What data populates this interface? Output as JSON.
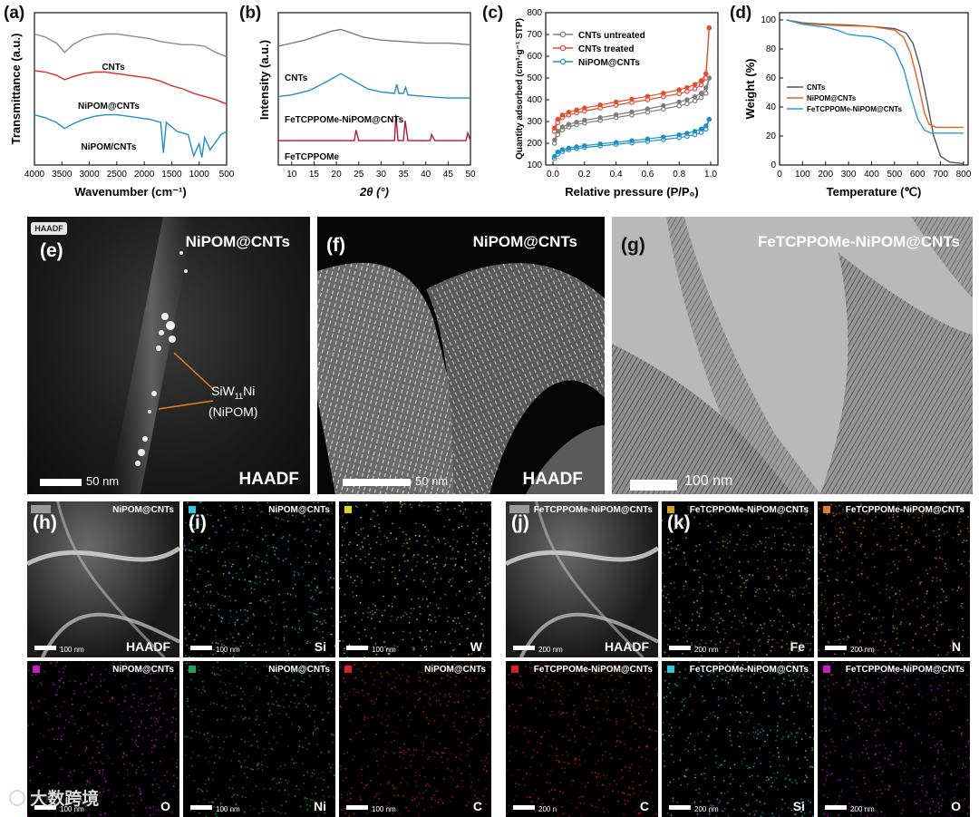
{
  "panels": {
    "a": {
      "letter": "(a)"
    },
    "b": {
      "letter": "(b)"
    },
    "c": {
      "letter": "(c)"
    },
    "d": {
      "letter": "(d)"
    },
    "e": {
      "letter": "(e)",
      "title": "NiPOM@CNTs",
      "tag": "HAADF",
      "annotation_line1": "SiW",
      "annotation_sub": "11",
      "annotation_line1b": "Ni",
      "annotation_line2": "(NiPOM)",
      "scale": "50 nm",
      "corner": "HAADF"
    },
    "f": {
      "letter": "(f)",
      "title": "NiPOM@CNTs",
      "scale": "50 nm",
      "corner": "HAADF"
    },
    "g": {
      "letter": "(g)",
      "title": "FeTCPPOMe-NiPOM@CNTs",
      "scale": "100 nm"
    }
  },
  "mapping_left": {
    "h_letter": "(h)",
    "i_letter": "(i)",
    "tiles": [
      {
        "title": "NiPOM@CNTs",
        "element": "HAADF",
        "scale": "100 nm",
        "color": "#ffffff"
      },
      {
        "title": "NiPOM@CNTs",
        "element": "Si",
        "scale": "100 nm",
        "color": "#2ec8d8"
      },
      {
        "title": "",
        "element": "W",
        "scale": "100 nm",
        "color": "#d8d81a"
      },
      {
        "title": "NiPOM@CNTs",
        "element": "O",
        "scale": "100 nm",
        "color": "#c21ec2"
      },
      {
        "title": "NiPOM@CNTs",
        "element": "Ni",
        "scale": "100 nm",
        "color": "#1fa35a"
      },
      {
        "title": "NiPOM@CNTs",
        "element": "C",
        "scale": "100 nm",
        "color": "#e0201a"
      }
    ]
  },
  "mapping_right": {
    "j_letter": "(j)",
    "k_letter": "(k)",
    "tiles": [
      {
        "title": "FeTCPPOMe-NiPOM@CNTs",
        "element": "HAADF",
        "scale": "200 nm",
        "color": "#ffffff"
      },
      {
        "title": "FeTCPPOMe-NiPOM@CNTs",
        "element": "Fe",
        "scale": "200 nm",
        "color": "#c8a21a"
      },
      {
        "title": "FeTCPPOMe-NiPOM@CNTs",
        "element": "N",
        "scale": "200 nm",
        "color": "#e0801a"
      },
      {
        "title": "FeTCPPOMe-NiPOM@CNTs",
        "element": "C",
        "scale": "200 n",
        "color": "#e0201a"
      },
      {
        "title": "FeTCPPOMe-NiPOM@CNTs",
        "element": "Si",
        "scale": "200 nm",
        "color": "#2ec8d8"
      },
      {
        "title": "FeTCPPOMe-NiPOM@CNTs",
        "element": "O",
        "scale": "200 nm",
        "color": "#c21ec2"
      }
    ]
  },
  "watermark": "大数跨境",
  "chart_data": [
    {
      "id": "a",
      "type": "line",
      "title": "",
      "xlabel": "Wavenumber (cm⁻¹)",
      "ylabel": "Transmittance (a.u.)",
      "xlim": [
        4000,
        500
      ],
      "xticks": [
        "4000",
        "3500",
        "3000",
        "2500",
        "2000",
        "1500",
        "1000",
        "500"
      ],
      "series": [
        {
          "name": "CNTs",
          "color": "#8c8c8c",
          "x": [
            4000,
            3800,
            3600,
            3450,
            3300,
            3100,
            2900,
            2700,
            2500,
            2300,
            2100,
            1900,
            1700,
            1500,
            1300,
            1100,
            900,
            700,
            500
          ],
          "y": [
            0.86,
            0.84,
            0.8,
            0.74,
            0.79,
            0.83,
            0.85,
            0.86,
            0.86,
            0.85,
            0.84,
            0.83,
            0.81,
            0.8,
            0.79,
            0.79,
            0.78,
            0.74,
            0.71
          ]
        },
        {
          "name": "NiPOM@CNTs",
          "color": "#e02a20",
          "x": [
            4000,
            3800,
            3600,
            3450,
            3300,
            3100,
            2900,
            2700,
            2500,
            2300,
            2100,
            1900,
            1700,
            1500,
            1300,
            1100,
            900,
            700,
            500
          ],
          "y": [
            0.62,
            0.61,
            0.59,
            0.56,
            0.58,
            0.6,
            0.61,
            0.61,
            0.6,
            0.59,
            0.58,
            0.57,
            0.55,
            0.52,
            0.5,
            0.47,
            0.45,
            0.43,
            0.4
          ]
        },
        {
          "name": "NiPOM/CNTs",
          "color": "#1f8fc8",
          "x": [
            4000,
            3800,
            3600,
            3450,
            3300,
            3100,
            2900,
            2700,
            2500,
            2300,
            2100,
            1900,
            1700,
            1650,
            1600,
            1400,
            1200,
            1100,
            1000,
            950,
            900,
            800,
            700,
            600,
            500
          ],
          "y": [
            0.33,
            0.31,
            0.28,
            0.24,
            0.27,
            0.3,
            0.32,
            0.33,
            0.33,
            0.32,
            0.31,
            0.3,
            0.28,
            0.08,
            0.28,
            0.22,
            0.2,
            0.06,
            0.14,
            0.05,
            0.18,
            0.1,
            0.15,
            0.2,
            0.22
          ]
        }
      ],
      "labels": [
        "CNTs",
        "NiPOM@CNTs",
        "NiPOM/CNTs"
      ]
    },
    {
      "id": "b",
      "type": "line",
      "xlabel": "2θ (°)",
      "ylabel": "Intensity (a.u.)",
      "xlim": [
        7,
        50
      ],
      "xticks": [
        "10",
        "15",
        "20",
        "25",
        "30",
        "35",
        "40",
        "45",
        "50"
      ],
      "series": [
        {
          "name": "CNTs",
          "color": "#7d7d7d",
          "x": [
            7,
            10,
            13,
            16,
            19,
            21,
            23,
            26,
            30,
            35,
            40,
            45,
            50
          ],
          "y": [
            0.78,
            0.8,
            0.82,
            0.85,
            0.88,
            0.89,
            0.87,
            0.84,
            0.82,
            0.81,
            0.8,
            0.8,
            0.79
          ]
        },
        {
          "name": "FeTCPPOMe-NiPOM@CNTs",
          "color": "#1f8fc8",
          "x": [
            7,
            10,
            14,
            18,
            21,
            24,
            27,
            30,
            33,
            33.5,
            34,
            35,
            35.5,
            36,
            40,
            45,
            50
          ],
          "y": [
            0.45,
            0.46,
            0.49,
            0.55,
            0.6,
            0.55,
            0.5,
            0.48,
            0.47,
            0.53,
            0.47,
            0.47,
            0.51,
            0.46,
            0.45,
            0.44,
            0.44
          ]
        },
        {
          "name": "FeTCPPOMe",
          "color": "#b0153a",
          "x": [
            7,
            24,
            24.4,
            25,
            33,
            33.3,
            33.8,
            35,
            35.4,
            36,
            41,
            41.3,
            42,
            49,
            49.4,
            50
          ],
          "y": [
            0.16,
            0.16,
            0.23,
            0.16,
            0.16,
            0.33,
            0.16,
            0.16,
            0.29,
            0.16,
            0.16,
            0.2,
            0.16,
            0.16,
            0.21,
            0.16
          ]
        }
      ],
      "labels": [
        "CNTs",
        "FeTCPPOMe-NiPOM@CNTs",
        "FeTCPPOMe"
      ]
    },
    {
      "id": "c",
      "type": "scatter",
      "xlabel": "Relative pressure (P/P₀)",
      "ylabel": "Quantity adsorbed (cm³·g⁻¹ STP)",
      "xlim": [
        0.0,
        1.0
      ],
      "ylim": [
        100,
        800
      ],
      "xticks": [
        "0.0",
        "0.2",
        "0.4",
        "0.6",
        "0.8",
        "1.0"
      ],
      "yticks": [
        "100",
        "200",
        "300",
        "400",
        "500",
        "600",
        "700",
        "800"
      ],
      "series": [
        {
          "name": "CNTs untreated",
          "color": "#7d7d7d",
          "x": [
            0.01,
            0.03,
            0.06,
            0.1,
            0.15,
            0.2,
            0.3,
            0.4,
            0.5,
            0.6,
            0.7,
            0.8,
            0.85,
            0.9,
            0.94,
            0.97,
            0.99
          ],
          "y": [
            200,
            240,
            262,
            275,
            285,
            293,
            305,
            318,
            330,
            343,
            357,
            372,
            382,
            395,
            410,
            430,
            500
          ],
          "y_desorb": [
            215,
            255,
            275,
            287,
            297,
            306,
            318,
            331,
            344,
            358,
            373,
            390,
            400,
            414,
            430,
            455,
            500
          ]
        },
        {
          "name": "CNTs treated",
          "color": "#e84a2a",
          "x": [
            0.01,
            0.03,
            0.06,
            0.1,
            0.15,
            0.2,
            0.3,
            0.4,
            0.5,
            0.6,
            0.7,
            0.8,
            0.85,
            0.9,
            0.94,
            0.97,
            0.99
          ],
          "y": [
            255,
            295,
            318,
            330,
            340,
            348,
            362,
            375,
            388,
            400,
            414,
            428,
            438,
            450,
            468,
            500,
            730
          ],
          "y_desorb": [
            270,
            310,
            330,
            343,
            353,
            362,
            376,
            390,
            403,
            416,
            430,
            446,
            456,
            470,
            488,
            520,
            730
          ]
        },
        {
          "name": "NiPOM@CNTs",
          "color": "#1f8fc8",
          "x": [
            0.01,
            0.03,
            0.06,
            0.1,
            0.15,
            0.2,
            0.3,
            0.4,
            0.5,
            0.6,
            0.7,
            0.8,
            0.85,
            0.9,
            0.94,
            0.97,
            0.99
          ],
          "y": [
            130,
            150,
            162,
            170,
            176,
            181,
            188,
            195,
            202,
            209,
            217,
            226,
            232,
            240,
            250,
            265,
            310
          ],
          "y_desorb": [
            140,
            160,
            171,
            178,
            184,
            189,
            197,
            204,
            212,
            220,
            229,
            239,
            246,
            255,
            266,
            280,
            310
          ]
        }
      ]
    },
    {
      "id": "d",
      "type": "line",
      "xlabel": "Temperature (℃)",
      "ylabel": "Weight (%)",
      "xlim": [
        0,
        820
      ],
      "ylim": [
        0,
        105
      ],
      "xticks": [
        "0",
        "100",
        "200",
        "300",
        "400",
        "500",
        "600",
        "700",
        "800"
      ],
      "yticks": [
        "0",
        "20",
        "40",
        "60",
        "80",
        "100"
      ],
      "series": [
        {
          "name": "CNTs",
          "color": "#555555",
          "x": [
            30,
            100,
            200,
            300,
            400,
            500,
            550,
            580,
            610,
            640,
            670,
            700,
            740,
            800
          ],
          "y": [
            100,
            98,
            97,
            96.5,
            95.5,
            94,
            91,
            84,
            68,
            45,
            20,
            6,
            2,
            1
          ]
        },
        {
          "name": "NiPOM@CNTs",
          "color": "#e8601a",
          "x": [
            30,
            100,
            200,
            300,
            400,
            500,
            540,
            570,
            600,
            630,
            650,
            680,
            720,
            800
          ],
          "y": [
            100,
            97.5,
            96.5,
            96,
            95.5,
            93,
            88,
            77,
            58,
            36,
            28,
            26,
            26,
            26
          ]
        },
        {
          "name": "FeTCPPOMe-NiPOM@CNTs",
          "color": "#2a9ad8",
          "x": [
            30,
            100,
            200,
            250,
            300,
            350,
            400,
            450,
            500,
            540,
            570,
            600,
            630,
            660,
            700,
            800
          ],
          "y": [
            100,
            97,
            95,
            93,
            90,
            89,
            88.5,
            86,
            80,
            66,
            48,
            32,
            24,
            22,
            22,
            22
          ]
        }
      ]
    }
  ]
}
